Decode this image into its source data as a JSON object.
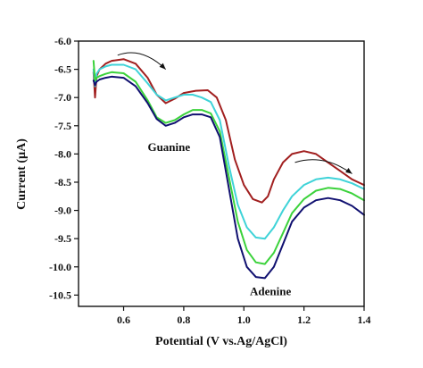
{
  "chart_data": {
    "type": "line",
    "xlabel": "Potential (V vs.Ag/AgCl)",
    "ylabel": "Current (µA)",
    "xlim": [
      0.45,
      1.4
    ],
    "ylim": [
      -10.7,
      -6.0
    ],
    "xticks": [
      0.6,
      0.8,
      1.0,
      1.2,
      1.4
    ],
    "xtick_labels": [
      "0.6",
      "0.8",
      "1.0",
      "1.2",
      "1.4"
    ],
    "yticks": [
      -6.0,
      -6.5,
      -7.0,
      -7.5,
      -8.0,
      -8.5,
      -9.0,
      -9.5,
      -10.0,
      -10.5
    ],
    "ytick_labels": [
      "-6.0",
      "-6.5",
      "-7.0",
      "-7.5",
      "-8.0",
      "-8.5",
      "-9.0",
      "-9.5",
      "-10.0",
      "-10.5"
    ],
    "grid": false,
    "annotations": [
      {
        "text": "Guanine",
        "x": 0.68,
        "y": -7.95
      },
      {
        "text": "Adenine",
        "x": 1.02,
        "y": -10.5
      }
    ],
    "arrows": [
      {
        "from": [
          0.58,
          -6.25
        ],
        "to": [
          0.74,
          -6.5
        ]
      },
      {
        "from": [
          1.17,
          -8.15
        ],
        "to": [
          1.36,
          -8.35
        ]
      }
    ],
    "series": [
      {
        "color": "#a11f1f",
        "x": [
          0.5,
          0.505,
          0.51,
          0.52,
          0.54,
          0.56,
          0.6,
          0.64,
          0.68,
          0.71,
          0.74,
          0.77,
          0.8,
          0.84,
          0.88,
          0.91,
          0.94,
          0.97,
          1.0,
          1.03,
          1.06,
          1.08,
          1.1,
          1.13,
          1.16,
          1.2,
          1.24,
          1.28,
          1.32,
          1.36,
          1.4
        ],
        "y": [
          -6.55,
          -7.0,
          -6.62,
          -6.5,
          -6.4,
          -6.35,
          -6.32,
          -6.4,
          -6.65,
          -6.95,
          -7.1,
          -7.02,
          -6.92,
          -6.88,
          -6.87,
          -7.0,
          -7.4,
          -8.1,
          -8.55,
          -8.8,
          -8.86,
          -8.75,
          -8.45,
          -8.15,
          -8.0,
          -7.95,
          -8.0,
          -8.15,
          -8.3,
          -8.45,
          -8.55
        ]
      },
      {
        "color": "#3fd3d8",
        "x": [
          0.5,
          0.505,
          0.51,
          0.52,
          0.54,
          0.56,
          0.6,
          0.64,
          0.68,
          0.71,
          0.74,
          0.77,
          0.8,
          0.83,
          0.86,
          0.89,
          0.92,
          0.95,
          0.98,
          1.01,
          1.04,
          1.07,
          1.1,
          1.13,
          1.16,
          1.2,
          1.24,
          1.28,
          1.32,
          1.36,
          1.4
        ],
        "y": [
          -6.5,
          -6.8,
          -6.58,
          -6.5,
          -6.45,
          -6.42,
          -6.42,
          -6.5,
          -6.75,
          -6.95,
          -7.05,
          -7.0,
          -6.95,
          -6.95,
          -7.0,
          -7.08,
          -7.4,
          -8.2,
          -8.9,
          -9.3,
          -9.48,
          -9.5,
          -9.3,
          -9.0,
          -8.75,
          -8.55,
          -8.45,
          -8.42,
          -8.45,
          -8.52,
          -8.62
        ]
      },
      {
        "color": "#3bd23b",
        "x": [
          0.5,
          0.505,
          0.51,
          0.52,
          0.54,
          0.56,
          0.6,
          0.64,
          0.68,
          0.71,
          0.74,
          0.77,
          0.8,
          0.83,
          0.86,
          0.89,
          0.92,
          0.95,
          0.98,
          1.01,
          1.04,
          1.07,
          1.1,
          1.13,
          1.16,
          1.2,
          1.24,
          1.28,
          1.32,
          1.36,
          1.4
        ],
        "y": [
          -6.35,
          -6.7,
          -6.65,
          -6.62,
          -6.58,
          -6.55,
          -6.57,
          -6.72,
          -7.05,
          -7.35,
          -7.45,
          -7.4,
          -7.3,
          -7.22,
          -7.22,
          -7.28,
          -7.6,
          -8.4,
          -9.2,
          -9.7,
          -9.92,
          -9.95,
          -9.75,
          -9.4,
          -9.05,
          -8.8,
          -8.65,
          -8.6,
          -8.62,
          -8.7,
          -8.82
        ]
      },
      {
        "color": "#101070",
        "x": [
          0.5,
          0.505,
          0.51,
          0.52,
          0.54,
          0.56,
          0.6,
          0.64,
          0.68,
          0.71,
          0.74,
          0.77,
          0.8,
          0.83,
          0.86,
          0.89,
          0.92,
          0.95,
          0.98,
          1.01,
          1.04,
          1.07,
          1.1,
          1.13,
          1.16,
          1.2,
          1.24,
          1.28,
          1.32,
          1.36,
          1.4
        ],
        "y": [
          -6.7,
          -6.78,
          -6.72,
          -6.68,
          -6.65,
          -6.63,
          -6.65,
          -6.8,
          -7.1,
          -7.38,
          -7.5,
          -7.45,
          -7.35,
          -7.3,
          -7.3,
          -7.35,
          -7.7,
          -8.6,
          -9.5,
          -10.0,
          -10.18,
          -10.2,
          -10.0,
          -9.6,
          -9.2,
          -8.95,
          -8.82,
          -8.78,
          -8.82,
          -8.92,
          -9.08
        ]
      }
    ]
  }
}
